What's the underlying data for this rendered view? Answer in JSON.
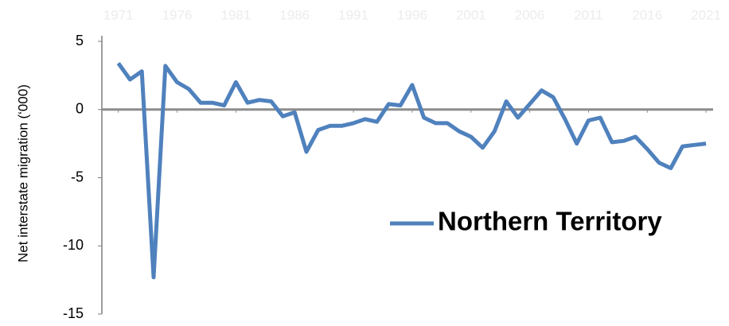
{
  "chart_data": {
    "type": "line",
    "y_label": "Net interstate migration (‘000)",
    "x": [
      1971,
      1972,
      1973,
      1974,
      1975,
      1976,
      1977,
      1978,
      1979,
      1980,
      1981,
      1982,
      1983,
      1984,
      1985,
      1986,
      1987,
      1988,
      1989,
      1990,
      1991,
      1992,
      1993,
      1994,
      1995,
      1996,
      1997,
      1998,
      1999,
      2000,
      2001,
      2002,
      2003,
      2004,
      2005,
      2006,
      2007,
      2008,
      2009,
      2010,
      2011,
      2012,
      2013,
      2014,
      2015,
      2016,
      2017,
      2018,
      2019,
      2020,
      2021
    ],
    "series": [
      {
        "name": "Northern Territory",
        "color": "#4f81bd",
        "values": [
          3.4,
          2.2,
          2.8,
          -12.3,
          3.2,
          2.0,
          1.5,
          0.5,
          0.5,
          0.3,
          2.0,
          0.5,
          0.7,
          0.6,
          -0.5,
          -0.2,
          -3.1,
          -1.5,
          -1.2,
          -1.2,
          -1.0,
          -0.7,
          -0.9,
          0.4,
          0.3,
          1.8,
          -0.6,
          -1.0,
          -1.0,
          -1.6,
          -2.0,
          -2.8,
          -1.6,
          0.6,
          -0.6,
          0.4,
          1.4,
          0.9,
          -0.7,
          -2.5,
          -0.8,
          -0.6,
          -2.4,
          -2.3,
          -2.0,
          -2.9,
          -3.9,
          -4.3,
          -2.7,
          -2.6,
          -2.5
        ]
      }
    ],
    "xlim": [
      1969.6,
      2021.6
    ],
    "xticks": [
      1971,
      1976,
      1981,
      1986,
      1991,
      1996,
      2001,
      2006,
      2011,
      2016,
      2021
    ],
    "ylim": [
      -15,
      5
    ],
    "yticks": [
      5,
      0,
      -5,
      -10,
      -15
    ],
    "legend": "right"
  }
}
